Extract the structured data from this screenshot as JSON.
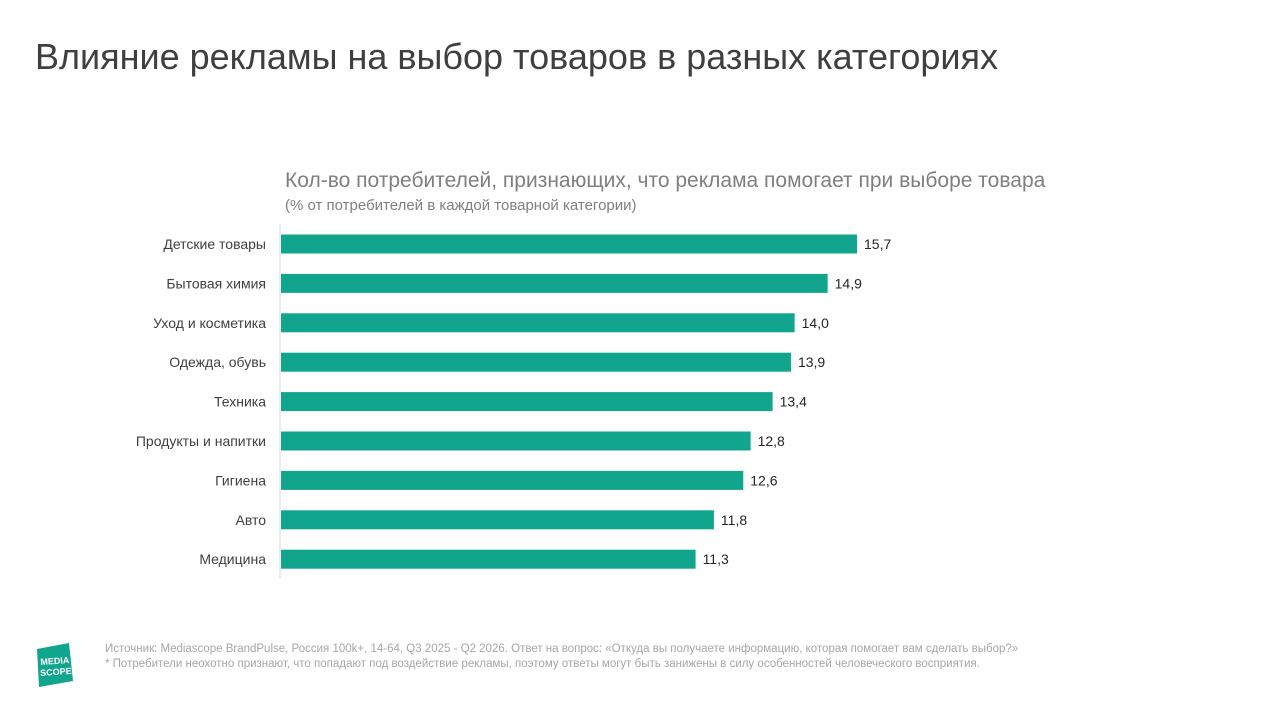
{
  "slide": {
    "title": "Влияние рекламы на выбор товаров в разных категориях"
  },
  "chart_data": {
    "type": "bar",
    "orientation": "horizontal",
    "title": "Кол-во потребителей, признающих, что реклама помогает при выборе товара",
    "subtitle": "(% от потребителей в каждой товарной категории)",
    "categories": [
      "Детские товары",
      "Бытовая химия",
      "Уход и косметика",
      "Одежда, обувь",
      "Техника",
      "Продукты и напитки",
      "Гигиена",
      "Авто",
      "Медицина"
    ],
    "values": [
      15.7,
      14.9,
      14.0,
      13.9,
      13.4,
      12.8,
      12.6,
      11.8,
      11.3
    ],
    "value_labels": [
      "15,7",
      "14,9",
      "14,0",
      "13,9",
      "13,4",
      "12,8",
      "12,6",
      "11,8",
      "11,3"
    ],
    "xlim": [
      0,
      16
    ],
    "bar_color": "#11a58e",
    "grid": false,
    "legend": "none"
  },
  "footer": {
    "source": "Источник: Mediascope BrandPulse, Россия 100k+, 14-64, Q3 2025 - Q2 2026. Ответ на вопрос: «Откуда вы получаете информацию, которая помогает вам сделать выбор?»",
    "note": "* Потребители неохотно признают, что попадают под воздействие рекламы, поэтому ответы могут быть занижены в силу особенностей человеческого восприятия."
  },
  "logo": {
    "line1": "MEDIA",
    "line2": "SCOPE",
    "color": "#11a58e"
  }
}
